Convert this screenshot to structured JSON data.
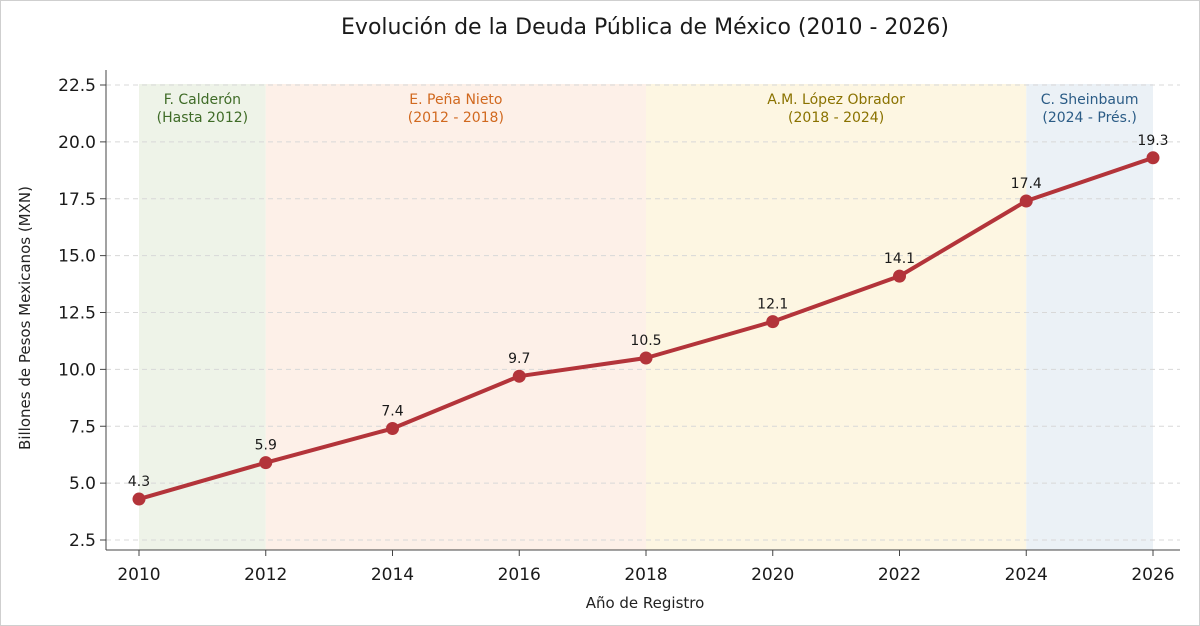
{
  "chart_data": {
    "type": "line",
    "title": "Evolución de la Deuda Pública de México (2010 - 2026)",
    "xlabel": "Año de Registro",
    "ylabel": "Billones de Pesos Mexicanos (MXN)",
    "xlim": [
      2010,
      2026
    ],
    "ylim": [
      2.5,
      22.5
    ],
    "xticks": [
      2010,
      2012,
      2014,
      2016,
      2018,
      2020,
      2022,
      2024,
      2026
    ],
    "yticks": [
      2.5,
      5.0,
      7.5,
      10.0,
      12.5,
      15.0,
      17.5,
      20.0,
      22.5
    ],
    "ytick_labels": [
      "2.5",
      "5.0",
      "7.5",
      "10.0",
      "12.5",
      "15.0",
      "17.5",
      "20.0",
      "22.5"
    ],
    "grid": "horizontal dashed",
    "series": [
      {
        "x": [
          2010,
          2012,
          2014,
          2016,
          2018,
          2020,
          2022,
          2024,
          2026
        ],
        "y": [
          4.3,
          5.9,
          7.4,
          9.7,
          10.5,
          12.1,
          14.1,
          17.4,
          19.3
        ],
        "labels": [
          "4.3",
          "5.9",
          "7.4",
          "9.7",
          "10.5",
          "12.1",
          "14.1",
          "17.4",
          "19.3"
        ],
        "color": "#b3343a"
      }
    ],
    "periods": [
      {
        "from": 2010,
        "to": 2012,
        "line1": "F. Calderón",
        "line2": "(Hasta 2012)",
        "fill": "#eef3e8",
        "text_color": "#3f6b27"
      },
      {
        "from": 2012,
        "to": 2018,
        "line1": "E. Peña Nieto",
        "line2": "(2012 - 2018)",
        "fill": "#fdf0e8",
        "text_color": "#d1691f"
      },
      {
        "from": 2018,
        "to": 2024,
        "line1": "A.M. López Obrador",
        "line2": "(2018 - 2024)",
        "fill": "#fdf6e2",
        "text_color": "#8a7200"
      },
      {
        "from": 2024,
        "to": 2026,
        "line1": "C. Sheinbaum",
        "line2": "(2024 - Prés.)",
        "fill": "#ebf1f6",
        "text_color": "#2b5c86"
      }
    ]
  }
}
